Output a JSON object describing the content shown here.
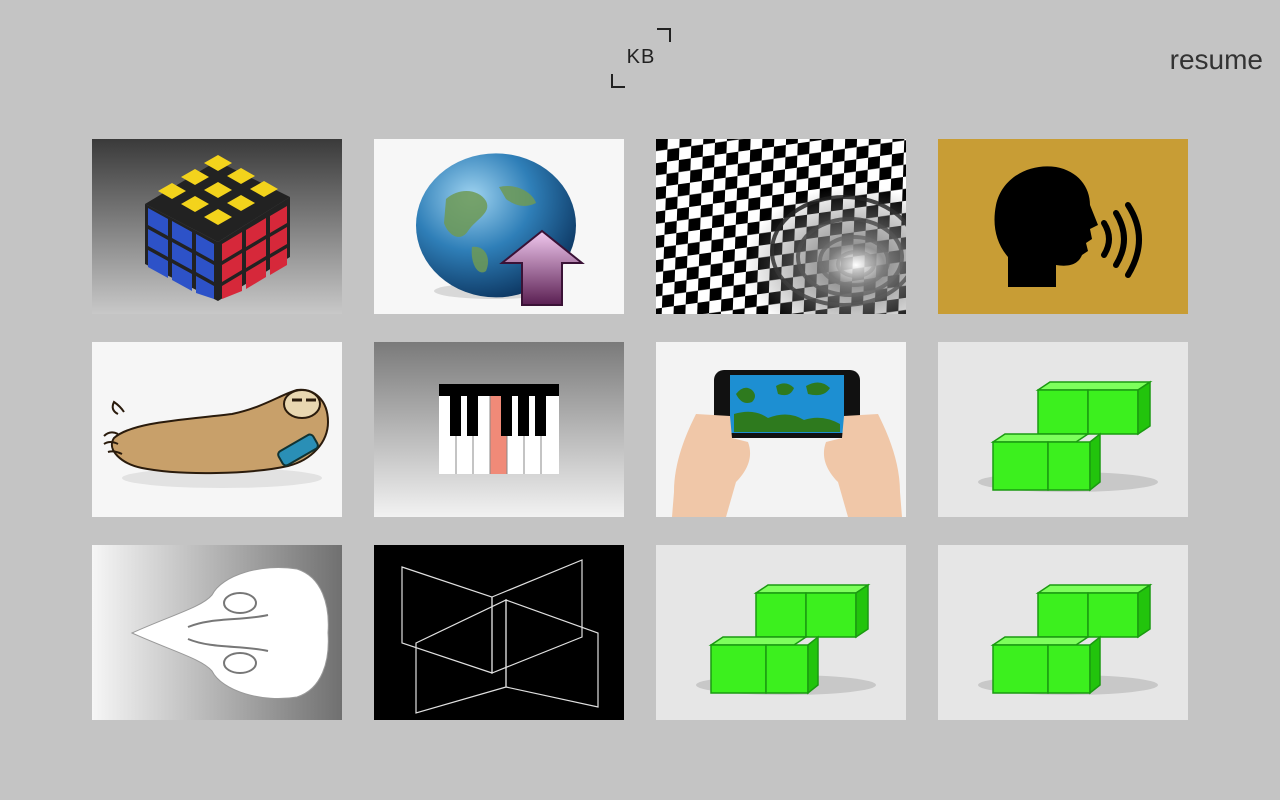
{
  "header": {
    "logo_text": "KB",
    "resume_label": "resume"
  },
  "projects": [
    {
      "icon": "rubiks-cube-icon"
    },
    {
      "icon": "globe-upload-icon"
    },
    {
      "icon": "warped-checkerboard-icon"
    },
    {
      "icon": "speaking-head-icon"
    },
    {
      "icon": "sloth-with-phone-icon"
    },
    {
      "icon": "piano-keys-icon"
    },
    {
      "icon": "phone-game-icon"
    },
    {
      "icon": "green-blocks-icon"
    },
    {
      "icon": "fluid-vortex-icon"
    },
    {
      "icon": "wireframe-planes-icon"
    },
    {
      "icon": "green-blocks-icon"
    },
    {
      "icon": "green-blocks-icon"
    }
  ],
  "colors": {
    "background": "#c4c4c4",
    "speaker_tile": "#c89d35",
    "block_green": "#3cf01e"
  }
}
